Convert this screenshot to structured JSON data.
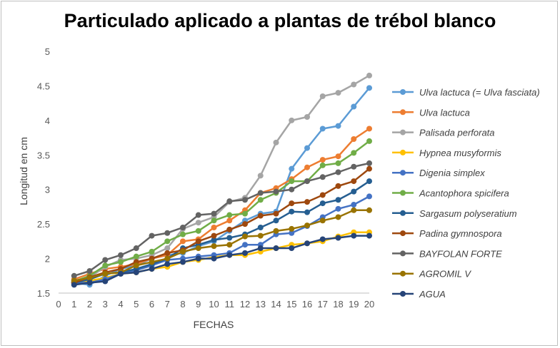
{
  "chart_data": {
    "type": "line",
    "title": "Particulado aplicado a plantas de trébol blanco",
    "xlabel": "FECHAS",
    "ylabel": "Longitud en cm",
    "xlim": [
      0,
      20
    ],
    "ylim": [
      1.5,
      5
    ],
    "x_ticks": [
      0,
      1,
      2,
      3,
      4,
      5,
      6,
      7,
      8,
      9,
      10,
      11,
      12,
      13,
      14,
      15,
      16,
      17,
      18,
      19,
      20
    ],
    "y_ticks": [
      1.5,
      2,
      2.5,
      3,
      3.5,
      4,
      4.5,
      5
    ],
    "grid": false,
    "legend_position": "right",
    "x": [
      1,
      2,
      3,
      4,
      5,
      6,
      7,
      8,
      9,
      10,
      11,
      12,
      13,
      14,
      15,
      16,
      17,
      18,
      19,
      20
    ],
    "series": [
      {
        "name": "Ulva lactuca (= Ulva fasciata)",
        "color": "#5b9bd5",
        "values": [
          1.65,
          1.62,
          1.75,
          1.85,
          1.9,
          2.0,
          2.05,
          2.08,
          2.18,
          2.25,
          2.4,
          2.55,
          2.65,
          2.68,
          3.3,
          3.6,
          3.88,
          3.92,
          4.2,
          4.47
        ]
      },
      {
        "name": "Ulva lactuca",
        "color": "#ed7d31",
        "values": [
          1.7,
          1.78,
          1.85,
          1.88,
          1.92,
          2.0,
          2.05,
          2.25,
          2.28,
          2.45,
          2.55,
          2.7,
          2.95,
          3.02,
          3.15,
          3.32,
          3.43,
          3.48,
          3.73,
          3.88
        ]
      },
      {
        "name": "Palisada perforata",
        "color": "#a5a5a5",
        "values": [
          1.68,
          1.73,
          1.88,
          1.98,
          2.0,
          2.05,
          2.15,
          2.43,
          2.52,
          2.6,
          2.82,
          2.88,
          3.2,
          3.68,
          4.0,
          4.05,
          4.35,
          4.4,
          4.52,
          4.65
        ]
      },
      {
        "name": "Hypnea musyformis",
        "color": "#ffc000",
        "values": [
          1.65,
          1.68,
          1.72,
          1.78,
          1.8,
          1.85,
          1.88,
          1.95,
          1.98,
          2.02,
          2.05,
          2.05,
          2.1,
          2.15,
          2.2,
          2.22,
          2.25,
          2.32,
          2.38,
          2.38
        ]
      },
      {
        "name": "Digenia simplex",
        "color": "#4472c4",
        "values": [
          1.65,
          1.65,
          1.7,
          1.78,
          1.83,
          1.9,
          1.98,
          2.0,
          2.03,
          2.05,
          2.08,
          2.2,
          2.2,
          2.35,
          2.37,
          2.47,
          2.6,
          2.72,
          2.78,
          2.9
        ]
      },
      {
        "name": "Acantophora spicifera",
        "color": "#70ad47",
        "values": [
          1.67,
          1.75,
          1.9,
          1.95,
          2.03,
          2.1,
          2.25,
          2.35,
          2.4,
          2.55,
          2.63,
          2.65,
          2.85,
          2.95,
          3.12,
          3.12,
          3.35,
          3.38,
          3.53,
          3.7
        ]
      },
      {
        "name": "Sargasum polyseratium",
        "color": "#255e91",
        "values": [
          1.65,
          1.7,
          1.78,
          1.8,
          1.85,
          1.92,
          2.0,
          2.15,
          2.2,
          2.27,
          2.3,
          2.35,
          2.45,
          2.55,
          2.68,
          2.67,
          2.8,
          2.85,
          2.97,
          3.12
        ]
      },
      {
        "name": "Padina gymnospora",
        "color": "#9e480e",
        "values": [
          1.65,
          1.73,
          1.8,
          1.85,
          1.95,
          2.0,
          2.08,
          2.12,
          2.25,
          2.33,
          2.42,
          2.5,
          2.62,
          2.65,
          2.8,
          2.82,
          2.92,
          3.05,
          3.12,
          3.3
        ]
      },
      {
        "name": "BAYFOLAN FORTE",
        "color": "#636363",
        "values": [
          1.75,
          1.82,
          1.98,
          2.05,
          2.15,
          2.33,
          2.37,
          2.45,
          2.63,
          2.65,
          2.83,
          2.85,
          2.95,
          2.97,
          3.0,
          3.12,
          3.18,
          3.25,
          3.33,
          3.38
        ]
      },
      {
        "name": "AGROMIL V",
        "color": "#997300",
        "values": [
          1.68,
          1.72,
          1.78,
          1.8,
          1.9,
          1.95,
          2.0,
          2.1,
          2.15,
          2.18,
          2.2,
          2.32,
          2.33,
          2.4,
          2.43,
          2.48,
          2.55,
          2.6,
          2.7,
          2.7
        ]
      },
      {
        "name": "AGUA",
        "color": "#264478",
        "values": [
          1.62,
          1.65,
          1.67,
          1.78,
          1.8,
          1.85,
          1.92,
          1.95,
          2.0,
          2.0,
          2.05,
          2.08,
          2.15,
          2.15,
          2.15,
          2.22,
          2.28,
          2.3,
          2.33,
          2.33
        ]
      }
    ]
  }
}
